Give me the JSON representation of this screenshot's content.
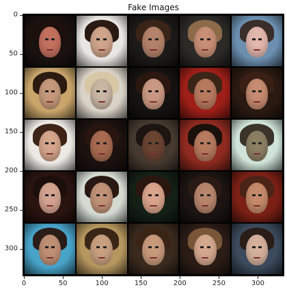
{
  "title": "Fake Images",
  "y_ticks": [
    "0",
    "50",
    "100",
    "150",
    "200",
    "250",
    "300"
  ],
  "x_ticks": [
    "0",
    "50",
    "100",
    "150",
    "200",
    "250",
    "300"
  ],
  "tiles": [
    {
      "bg": "#1a120f",
      "skin": "#c4705f",
      "hair": "#1c0f0c"
    },
    {
      "bg": "#e8e6e2",
      "skin": "#cfa58b",
      "hair": "#2b1a14"
    },
    {
      "bg": "#1c1a19",
      "skin": "#b5836a",
      "hair": "#3a2418"
    },
    {
      "bg": "#2b2a27",
      "skin": "#c98f76",
      "hair": "#8d6a4a"
    },
    {
      "bg": "#6c8fb0",
      "skin": "#e2b7ad",
      "hair": "#3a2e2a"
    },
    {
      "bg": "#c9a56a",
      "skin": "#c69a7b",
      "hair": "#2b1b10"
    },
    {
      "bg": "#d9d2c7",
      "skin": "#c9b6a3",
      "hair": "#d8c7a5"
    },
    {
      "bg": "#141312",
      "skin": "#cb9983",
      "hair": "#2a1710"
    },
    {
      "bg": "#9f1f18",
      "skin": "#b87a5f",
      "hair": "#3a2517"
    },
    {
      "bg": "#2b1a12",
      "skin": "#c68b70",
      "hair": "#3a2014"
    },
    {
      "bg": "#ece9e4",
      "skin": "#d5a58c",
      "hair": "#3d2416"
    },
    {
      "bg": "#1c120f",
      "skin": "#a86b51",
      "hair": "#281510"
    },
    {
      "bg": "#463a30",
      "skin": "#6b4432",
      "hair": "#1c1512"
    },
    {
      "bg": "#8e2a1f",
      "skin": "#b77a5f",
      "hair": "#1a100c"
    },
    {
      "bg": "#cfe3d8",
      "skin": "#8c7f63",
      "hair": "#3a342a"
    },
    {
      "bg": "#2a1410",
      "skin": "#d3a390",
      "hair": "#1c0e0b"
    },
    {
      "bg": "#d4dad2",
      "skin": "#c09277",
      "hair": "#2a1812"
    },
    {
      "bg": "#142016",
      "skin": "#d9a38c",
      "hair": "#2b150f"
    },
    {
      "bg": "#1b1412",
      "skin": "#b7856c",
      "hair": "#2a1a14"
    },
    {
      "bg": "#7c2015",
      "skin": "#c58a6a",
      "hair": "#4b2417"
    },
    {
      "bg": "#48a3c9",
      "skin": "#c09075",
      "hair": "#2a1c16"
    },
    {
      "bg": "#b5965e",
      "skin": "#c8a080",
      "hair": "#3a2616"
    },
    {
      "bg": "#3a2a1e",
      "skin": "#c89a7c",
      "hair": "#3a2416"
    },
    {
      "bg": "#2b1c16",
      "skin": "#d4a88e",
      "hair": "#7a5638"
    },
    {
      "bg": "#3b4a5c",
      "skin": "#d5b19d",
      "hair": "#2a1c17"
    }
  ]
}
